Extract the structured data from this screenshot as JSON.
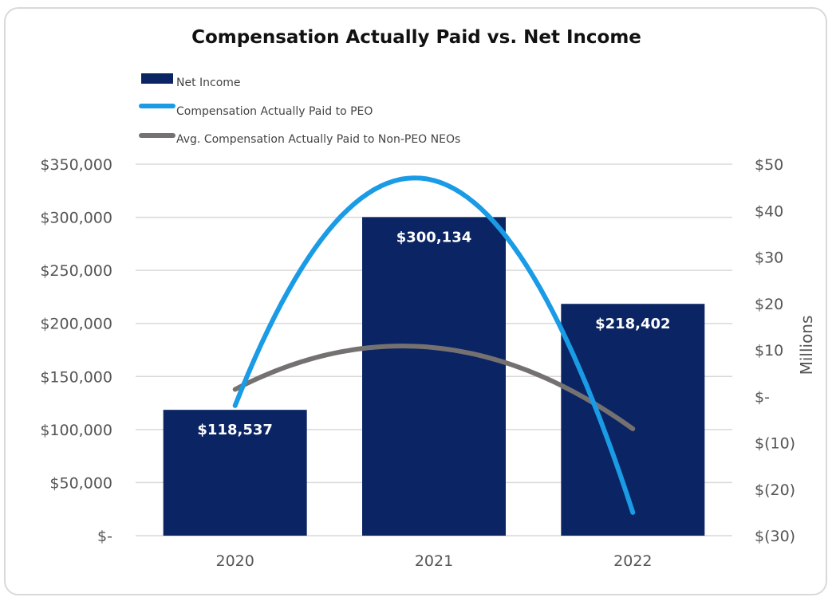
{
  "chart_data": {
    "type": "bar",
    "title": "Compensation Actually Paid vs. Net Income",
    "categories": [
      "2020",
      "2021",
      "2022"
    ],
    "xlabel": "",
    "ylabel": "",
    "ylabel_right": "Millions",
    "ylim": [
      0,
      350000
    ],
    "ylim_right": [
      -30,
      50
    ],
    "yticks": [
      "$-",
      "$50,000",
      "$100,000",
      "$150,000",
      "$200,000",
      "$250,000",
      "$300,000",
      "$350,000"
    ],
    "yticks_right": [
      "$(30)",
      "$(20)",
      "$(10)",
      "$-",
      "$10",
      "$20",
      "$30",
      "$40",
      "$50"
    ],
    "grid": true,
    "legend_position": "top-left",
    "series": [
      {
        "name": "Net Income",
        "kind": "bar",
        "axis": "left",
        "color": "#0b2463",
        "values": [
          118537,
          300134,
          218402
        ],
        "labels": [
          "$118,537",
          "$300,134",
          "$218,402"
        ]
      },
      {
        "name": "Compensation Actually Paid to PEO",
        "kind": "line",
        "axis": "right",
        "color": "#1a9be6",
        "values": [
          -2,
          46.5,
          -25
        ]
      },
      {
        "name": "Avg. Compensation Actually Paid to Non-PEO NEOs",
        "kind": "line",
        "axis": "right",
        "color": "#767171",
        "values": [
          1.5,
          10.5,
          -7
        ]
      }
    ]
  }
}
